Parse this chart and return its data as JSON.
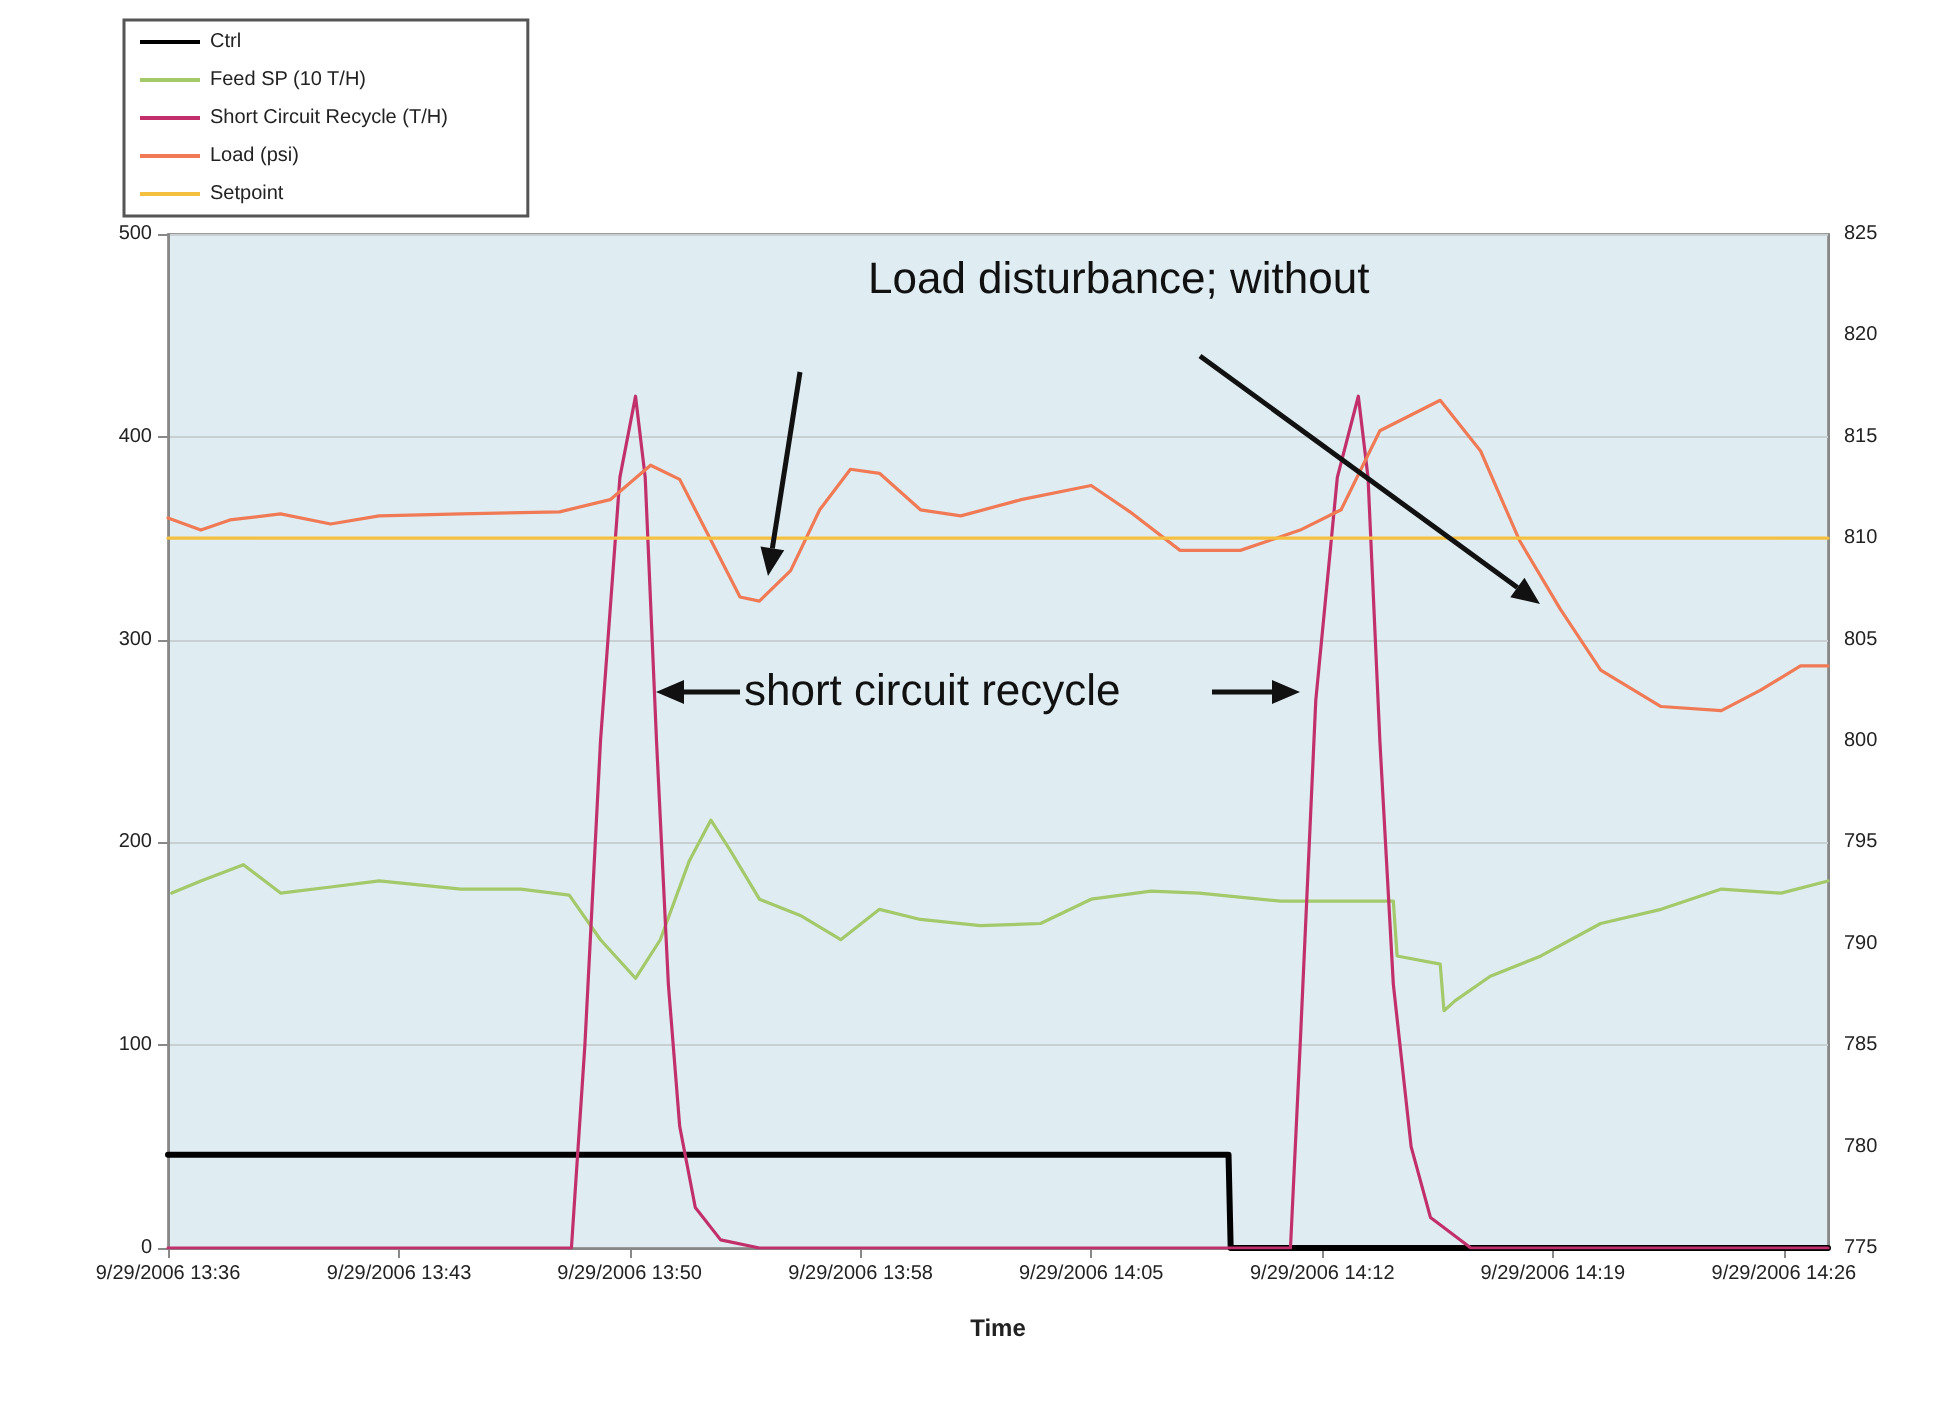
{
  "chart_data": {
    "type": "line",
    "xlabel": "Time",
    "legend": "top left",
    "grid": "y",
    "marker": "none",
    "line_style": "solid",
    "xlim": [
      "2006-09-29T13:36:15",
      "2006-09-29T14:27:37"
    ],
    "xticks": [
      {
        "value": "2006-09-29T13:36:15",
        "label": "9/29/2006 13:36"
      },
      {
        "value": "2006-09-29T13:43:24",
        "label": "9/29/2006 13:43"
      },
      {
        "value": "2006-09-29T13:50:32",
        "label": "9/29/2006 13:50"
      },
      {
        "value": "2006-09-29T13:57:41",
        "label": "9/29/2006 13:58"
      },
      {
        "value": "2006-09-29T14:04:49",
        "label": "9/29/2006 14:05"
      },
      {
        "value": "2006-09-29T14:11:58",
        "label": "9/29/2006 14:12"
      },
      {
        "value": "2006-09-29T14:19:06",
        "label": "9/29/2006 14:19"
      },
      {
        "value": "2006-09-29T14:26:15",
        "label": "9/29/2006 14:26"
      }
    ],
    "ylim": [
      0,
      500
    ],
    "yticks": [
      0,
      100,
      200,
      300,
      400,
      500
    ],
    "y2lim": [
      775,
      825
    ],
    "y2ticks": [
      775,
      780,
      785,
      790,
      795,
      800,
      805,
      810,
      815,
      820,
      825
    ],
    "annotations": [
      "Load disturbance; without",
      "short circuit recycle"
    ],
    "series": [
      {
        "name": "Ctrl",
        "color": "#000000",
        "x": [
          "2006-09-29T13:36:15",
          "2006-09-29T14:09:04",
          "2006-09-29T14:09:08",
          "2006-09-29T14:27:37"
        ],
        "values": [
          46,
          46,
          0,
          0
        ]
      },
      {
        "name": "Feed SP (10 T/H)",
        "color": "#a3c96b",
        "x": [
          "2006-09-29T13:36:22",
          "2006-09-29T13:37:16",
          "2006-09-29T13:38:35",
          "2006-09-29T13:39:44",
          "2006-09-29T13:41:17",
          "2006-09-29T13:42:47",
          "2006-09-29T13:45:19",
          "2006-09-29T13:47:10",
          "2006-09-29T13:48:40",
          "2006-09-29T13:49:38",
          "2006-09-29T13:50:43",
          "2006-09-29T13:51:29",
          "2006-09-29T13:52:23",
          "2006-09-29T13:53:03",
          "2006-09-29T13:53:39",
          "2006-09-29T13:54:33",
          "2006-09-29T13:55:49",
          "2006-09-29T13:57:04",
          "2006-09-29T13:58:16",
          "2006-09-29T13:59:32",
          "2006-09-29T14:01:23",
          "2006-09-29T14:03:15",
          "2006-09-29T14:04:49",
          "2006-09-29T14:06:40",
          "2006-09-29T14:08:10",
          "2006-09-29T14:10:41",
          "2006-09-29T14:14:10",
          "2006-09-29T14:14:17",
          "2006-09-29T14:15:37",
          "2006-09-29T14:15:44",
          "2006-09-29T14:16:05",
          "2006-09-29T14:17:10",
          "2006-09-29T14:18:44",
          "2006-09-29T14:20:35",
          "2006-09-29T14:22:27",
          "2006-09-29T14:24:19",
          "2006-09-29T14:26:10",
          "2006-09-29T14:27:37"
        ],
        "values": [
          175,
          181,
          189,
          175,
          178,
          181,
          177,
          177,
          174,
          152,
          133,
          152,
          191,
          211,
          196,
          172,
          164,
          152,
          167,
          162,
          159,
          160,
          172,
          176,
          175,
          171,
          171,
          144,
          140,
          117,
          122,
          134,
          144,
          160,
          167,
          177,
          175,
          181
        ]
      },
      {
        "name": "Short Circuit Recycle (T/H)",
        "color": "#c2306c",
        "x": [
          "2006-09-29T13:36:15",
          "2006-09-29T13:48:44",
          "2006-09-29T13:49:09",
          "2006-09-29T13:49:38",
          "2006-09-29T13:50:14",
          "2006-09-29T13:50:43",
          "2006-09-29T13:51:01",
          "2006-09-29T13:51:22",
          "2006-09-29T13:51:44",
          "2006-09-29T13:52:05",
          "2006-09-29T13:52:34",
          "2006-09-29T13:53:21",
          "2006-09-29T13:54:33",
          "2006-09-29T14:10:59",
          "2006-09-29T14:11:17",
          "2006-09-29T14:11:46",
          "2006-09-29T14:12:26",
          "2006-09-29T14:13:05",
          "2006-09-29T14:13:23",
          "2006-09-29T14:13:45",
          "2006-09-29T14:14:10",
          "2006-09-29T14:14:43",
          "2006-09-29T14:15:19",
          "2006-09-29T14:16:34",
          "2006-09-29T14:27:37"
        ],
        "values": [
          0,
          0,
          100,
          250,
          380,
          420,
          380,
          250,
          130,
          60,
          20,
          4,
          0,
          0,
          100,
          270,
          380,
          420,
          380,
          250,
          130,
          50,
          15,
          0,
          0
        ]
      },
      {
        "name": "Load (psi)",
        "color": "#f07a55",
        "axis": "y2",
        "x": [
          "2006-09-29T13:36:15",
          "2006-09-29T13:37:16",
          "2006-09-29T13:38:10",
          "2006-09-29T13:39:44",
          "2006-09-29T13:41:17",
          "2006-09-29T13:42:47",
          "2006-09-29T13:45:19",
          "2006-09-29T13:48:22",
          "2006-09-29T13:49:56",
          "2006-09-29T13:51:11",
          "2006-09-29T13:52:05",
          "2006-09-29T13:53:03",
          "2006-09-29T13:53:57",
          "2006-09-29T13:54:33",
          "2006-09-29T13:55:31",
          "2006-09-29T13:56:25",
          "2006-09-29T13:57:22",
          "2006-09-29T13:58:16",
          "2006-09-29T13:59:32",
          "2006-09-29T14:00:47",
          "2006-09-29T14:02:39",
          "2006-09-29T14:04:49",
          "2006-09-29T14:06:01",
          "2006-09-29T14:07:34",
          "2006-09-29T14:09:26",
          "2006-09-29T14:11:17",
          "2006-09-29T14:12:33",
          "2006-09-29T14:13:45",
          "2006-09-29T14:15:37",
          "2006-09-29T14:16:52",
          "2006-09-29T14:18:04",
          "2006-09-29T14:19:20",
          "2006-09-29T14:20:35",
          "2006-09-29T14:22:27",
          "2006-09-29T14:24:19",
          "2006-09-29T14:25:31",
          "2006-09-29T14:26:46",
          "2006-09-29T14:27:37"
        ],
        "values": [
          811,
          810.4,
          810.9,
          811.2,
          810.7,
          811.1,
          811.2,
          811.3,
          811.9,
          813.6,
          812.9,
          809.9,
          807.1,
          806.9,
          808.4,
          811.4,
          813.4,
          813.2,
          811.4,
          811.1,
          811.9,
          812.6,
          811.3,
          809.4,
          809.4,
          810.4,
          811.4,
          815.3,
          816.8,
          814.3,
          809.9,
          806.5,
          803.5,
          801.7,
          801.5,
          802.5,
          803.7,
          803.7
        ]
      },
      {
        "name": "Setpoint",
        "color": "#f5c040",
        "axis": "y2",
        "x": [
          "2006-09-29T13:36:15",
          "2006-09-29T14:27:37"
        ],
        "values": [
          810,
          810
        ]
      }
    ]
  }
}
